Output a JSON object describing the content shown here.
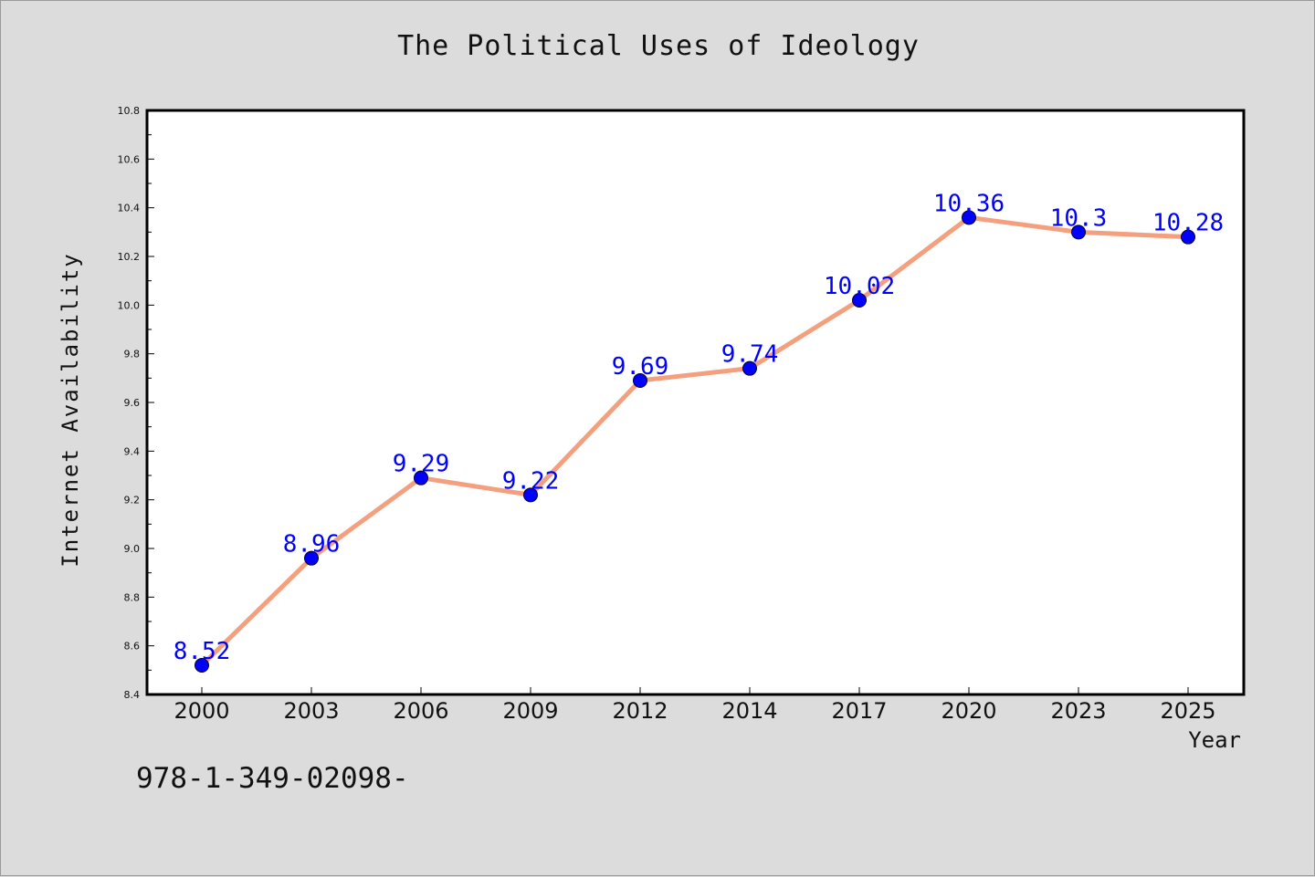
{
  "chart_data": {
    "type": "line",
    "title": "The Political Uses of Ideology",
    "xlabel": "Year",
    "ylabel": "Internet Availability",
    "categories": [
      "2000",
      "2003",
      "2006",
      "2009",
      "2012",
      "2014",
      "2017",
      "2020",
      "2023",
      "2025"
    ],
    "series": [
      {
        "values": [
          8.52,
          8.96,
          9.29,
          9.22,
          9.69,
          9.74,
          10.02,
          10.36,
          10.3,
          10.28
        ]
      }
    ],
    "data_labels": [
      "8.52",
      "8.96",
      "9.29",
      "9.22",
      "9.69",
      "9.74",
      "10.02",
      "10.36",
      "10.3",
      "10.28"
    ],
    "ylim": [
      8.4,
      10.8
    ],
    "yticks": [
      "8.4",
      "8.6",
      "8.8",
      "9.0",
      "9.2",
      "9.4",
      "9.6",
      "9.8",
      "10.0",
      "10.2",
      "10.4",
      "10.6",
      "10.8"
    ],
    "grid": false,
    "legend": "none",
    "colors": {
      "line": "#f4a07e",
      "marker": "#0000ff",
      "label": "#0000ff",
      "background": "#dcdcdc",
      "plot_area": "#ffffff"
    }
  },
  "footnote": "978-1-349-02098-"
}
